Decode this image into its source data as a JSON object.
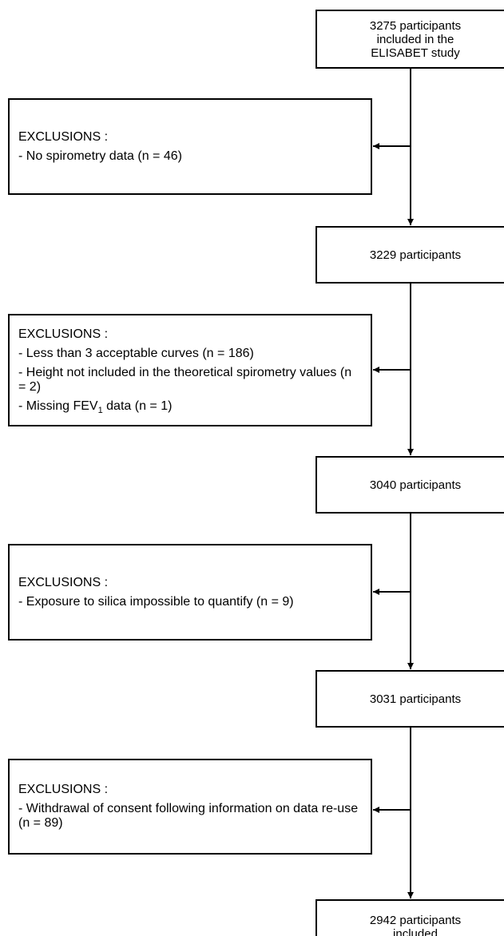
{
  "flow": {
    "steps": [
      {
        "lines": [
          "3275 participants",
          "included in the",
          "ELISABET study"
        ]
      },
      {
        "lines": [
          "3229 participants"
        ]
      },
      {
        "lines": [
          "3040 participants"
        ]
      },
      {
        "lines": [
          "3031 participants"
        ]
      },
      {
        "lines": [
          "2942 participants",
          "included"
        ]
      }
    ],
    "exclusions": [
      {
        "title": "EXCLUSIONS :",
        "items": [
          "- No spirometry data (n = 46)"
        ]
      },
      {
        "title": "EXCLUSIONS :",
        "items": [
          "- Less than 3 acceptable curves (n = 186)",
          "- Height not included in the theoretical spirometry values (n = 2)"
        ],
        "fev_item": {
          "prefix": "- Missing FEV",
          "subscript": "1",
          "suffix": " data (n = 1)"
        }
      },
      {
        "title": "EXCLUSIONS :",
        "items": [
          "- Exposure to silica impossible to quantify (n = 9)"
        ]
      },
      {
        "title": "EXCLUSIONS :",
        "items": [
          "- Withdrawal of consent following information on data re-use (n = 89)"
        ]
      }
    ]
  },
  "colors": {
    "stroke": "#000000",
    "background": "#ffffff"
  }
}
